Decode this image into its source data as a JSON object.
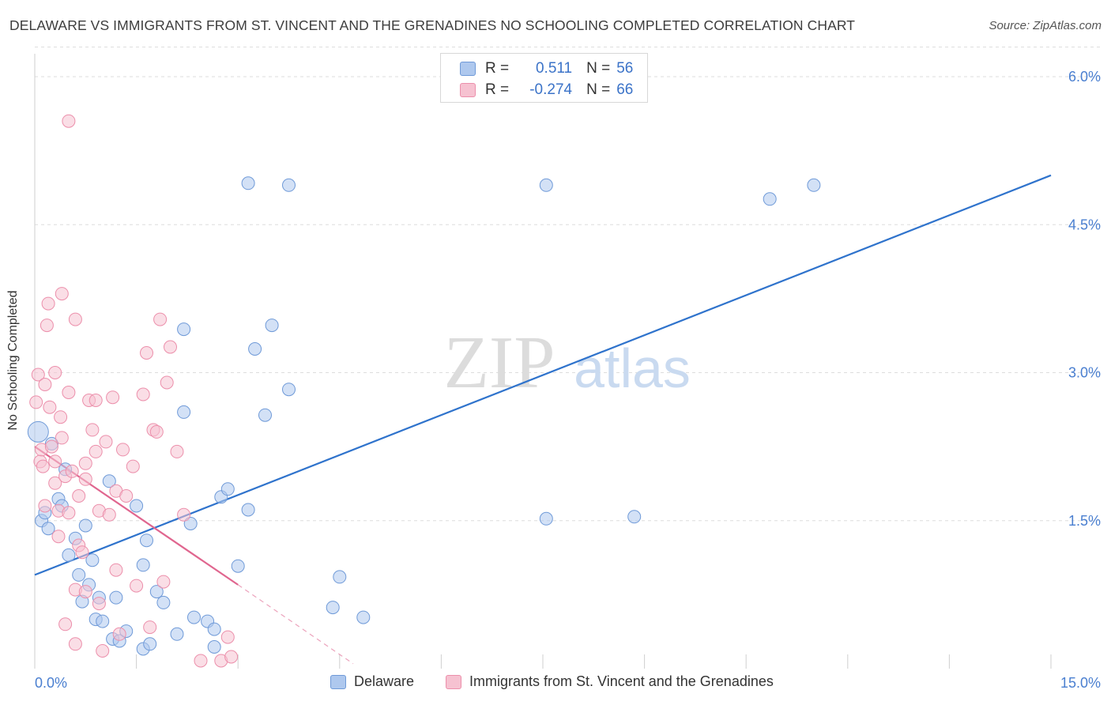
{
  "title": "DELAWARE VS IMMIGRANTS FROM ST. VINCENT AND THE GRENADINES NO SCHOOLING COMPLETED CORRELATION CHART",
  "source": "Source: ZipAtlas.com",
  "watermark": {
    "zip": "ZIP",
    "atlas": "atlas"
  },
  "colors": {
    "blue_fill": "#aec8ee",
    "blue_stroke": "#6f9ad8",
    "blue_line": "#2f73cc",
    "pink_fill": "#f6c2d1",
    "pink_stroke": "#ec8fab",
    "pink_line": "#e0668f",
    "axis_label": "#4a7fd0",
    "grid": "#dddddd"
  },
  "legend": {
    "rows": [
      {
        "r_label": "R =",
        "r_value": "0.511",
        "n_label": "N =",
        "n_value": "56"
      },
      {
        "r_label": "R =",
        "r_value": "-0.274",
        "n_label": "N =",
        "n_value": "66"
      }
    ]
  },
  "bottom_legend": {
    "series1": "Delaware",
    "series2": "Immigrants from St. Vincent and the Grenadines"
  },
  "chart_data": {
    "type": "scatter",
    "title": "DELAWARE VS IMMIGRANTS FROM ST. VINCENT AND THE GRENADINES NO SCHOOLING COMPLETED CORRELATION CHART",
    "xlabel": "",
    "ylabel": "No Schooling Completed",
    "xlim": [
      0,
      15
    ],
    "ylim": [
      0,
      6.3
    ],
    "x_tick_labels": [
      "0.0%",
      "15.0%"
    ],
    "y_ticks": [
      1.5,
      3.0,
      4.5,
      6.0
    ],
    "y_tick_labels": [
      "1.5%",
      "3.0%",
      "4.5%",
      "6.0%"
    ],
    "grid": true,
    "legend_position": "top-center",
    "series": [
      {
        "name": "Delaware",
        "color": "#aec8ee",
        "points": [
          [
            0.05,
            2.4
          ],
          [
            0.1,
            1.5
          ],
          [
            0.2,
            1.42
          ],
          [
            0.25,
            2.28
          ],
          [
            0.35,
            1.72
          ],
          [
            0.4,
            1.65
          ],
          [
            0.45,
            2.02
          ],
          [
            0.5,
            1.15
          ],
          [
            0.6,
            1.32
          ],
          [
            0.65,
            0.95
          ],
          [
            0.7,
            0.68
          ],
          [
            0.75,
            1.45
          ],
          [
            0.8,
            0.85
          ],
          [
            0.85,
            1.1
          ],
          [
            0.9,
            0.5
          ],
          [
            0.95,
            0.72
          ],
          [
            1.0,
            0.48
          ],
          [
            1.1,
            1.9
          ],
          [
            1.15,
            0.3
          ],
          [
            1.2,
            0.72
          ],
          [
            1.25,
            0.28
          ],
          [
            1.35,
            0.38
          ],
          [
            1.5,
            1.65
          ],
          [
            1.6,
            0.2
          ],
          [
            1.6,
            1.05
          ],
          [
            1.65,
            1.3
          ],
          [
            1.7,
            0.25
          ],
          [
            1.8,
            0.78
          ],
          [
            1.9,
            0.67
          ],
          [
            2.1,
            0.35
          ],
          [
            2.2,
            2.6
          ],
          [
            2.2,
            3.44
          ],
          [
            2.3,
            1.47
          ],
          [
            2.35,
            0.52
          ],
          [
            2.55,
            0.48
          ],
          [
            2.65,
            0.4
          ],
          [
            2.65,
            0.22
          ],
          [
            2.75,
            1.74
          ],
          [
            2.85,
            1.82
          ],
          [
            3.0,
            1.04
          ],
          [
            3.15,
            4.92
          ],
          [
            3.15,
            1.61
          ],
          [
            3.25,
            3.24
          ],
          [
            3.4,
            2.57
          ],
          [
            3.5,
            3.48
          ],
          [
            3.75,
            4.9
          ],
          [
            3.75,
            2.83
          ],
          [
            4.4,
            0.62
          ],
          [
            4.5,
            0.93
          ],
          [
            4.85,
            0.52
          ],
          [
            7.55,
            1.52
          ],
          [
            7.55,
            4.9
          ],
          [
            8.85,
            1.54
          ],
          [
            10.85,
            4.76
          ],
          [
            11.5,
            4.9
          ],
          [
            0.15,
            1.58
          ]
        ],
        "trend": {
          "x": [
            0,
            15
          ],
          "y": [
            0.95,
            5.0
          ]
        }
      },
      {
        "name": "Immigrants from St. Vincent and the Grenadines",
        "color": "#f6c2d1",
        "points": [
          [
            0.02,
            2.7
          ],
          [
            0.05,
            2.98
          ],
          [
            0.08,
            2.1
          ],
          [
            0.1,
            2.22
          ],
          [
            0.12,
            2.05
          ],
          [
            0.15,
            1.65
          ],
          [
            0.15,
            2.88
          ],
          [
            0.18,
            3.48
          ],
          [
            0.2,
            3.7
          ],
          [
            0.22,
            2.65
          ],
          [
            0.25,
            2.25
          ],
          [
            0.3,
            3.0
          ],
          [
            0.3,
            2.1
          ],
          [
            0.3,
            1.88
          ],
          [
            0.35,
            1.6
          ],
          [
            0.35,
            1.34
          ],
          [
            0.38,
            2.55
          ],
          [
            0.4,
            2.34
          ],
          [
            0.4,
            3.8
          ],
          [
            0.45,
            1.95
          ],
          [
            0.45,
            0.45
          ],
          [
            0.5,
            1.58
          ],
          [
            0.5,
            2.8
          ],
          [
            0.5,
            5.55
          ],
          [
            0.55,
            2.0
          ],
          [
            0.6,
            3.54
          ],
          [
            0.6,
            0.8
          ],
          [
            0.6,
            0.25
          ],
          [
            0.65,
            1.75
          ],
          [
            0.65,
            1.25
          ],
          [
            0.7,
            1.18
          ],
          [
            0.75,
            2.08
          ],
          [
            0.75,
            1.92
          ],
          [
            0.75,
            0.78
          ],
          [
            0.8,
            2.72
          ],
          [
            0.85,
            2.42
          ],
          [
            0.9,
            2.72
          ],
          [
            0.9,
            2.2
          ],
          [
            0.95,
            0.66
          ],
          [
            0.95,
            1.6
          ],
          [
            1.0,
            0.18
          ],
          [
            1.05,
            2.3
          ],
          [
            1.1,
            1.56
          ],
          [
            1.15,
            2.75
          ],
          [
            1.2,
            1.8
          ],
          [
            1.2,
            1.0
          ],
          [
            1.25,
            0.35
          ],
          [
            1.3,
            2.22
          ],
          [
            1.35,
            1.75
          ],
          [
            1.45,
            2.05
          ],
          [
            1.5,
            0.84
          ],
          [
            1.6,
            2.78
          ],
          [
            1.65,
            3.2
          ],
          [
            1.7,
            0.42
          ],
          [
            1.75,
            2.42
          ],
          [
            1.8,
            2.4
          ],
          [
            1.85,
            3.54
          ],
          [
            1.9,
            0.88
          ],
          [
            1.95,
            2.9
          ],
          [
            2.0,
            3.26
          ],
          [
            2.1,
            2.2
          ],
          [
            2.2,
            1.56
          ],
          [
            2.45,
            0.08
          ],
          [
            2.75,
            0.08
          ],
          [
            2.85,
            0.32
          ],
          [
            2.9,
            0.12
          ]
        ],
        "trend": {
          "x": [
            0,
            3.0
          ],
          "y": [
            2.25,
            0.85
          ]
        },
        "trend_extension": {
          "x": [
            3.0,
            4.7
          ],
          "y": [
            0.85,
            0.05
          ]
        }
      }
    ]
  }
}
